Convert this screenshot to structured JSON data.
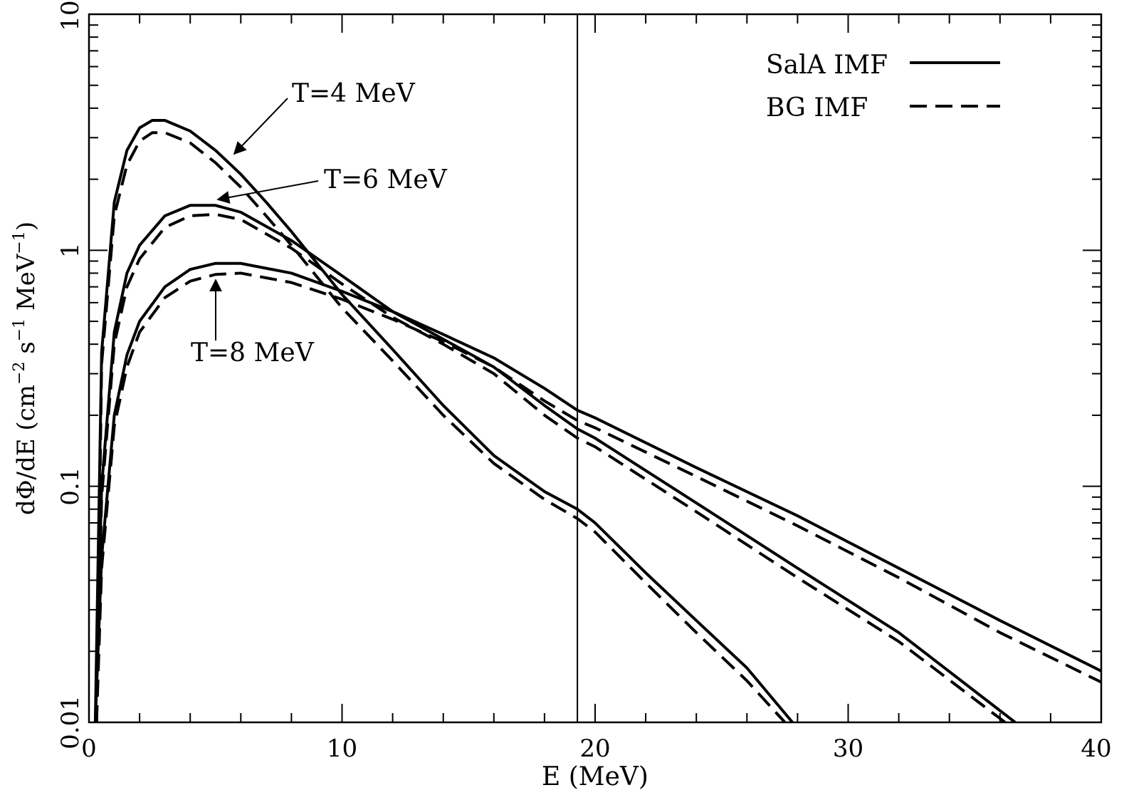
{
  "chart_data": {
    "type": "line",
    "title": "",
    "xlabel": "E (MeV)",
    "ylabel": "dΦ/dE (cm⁻² s⁻¹ MeV⁻¹)",
    "ylabel_parts": {
      "prefix": "dΦ/dE (cm",
      "exp1": "−2",
      "mid1": " s",
      "exp2": "−1",
      "mid2": " MeV",
      "exp3": "−1",
      "suffix": ")"
    },
    "xlim": [
      0,
      40
    ],
    "ylim": [
      0.01,
      10
    ],
    "yscale": "log",
    "grid": false,
    "x_ticks": [
      0,
      10,
      20,
      30,
      40
    ],
    "x_tick_labels": [
      "0",
      "10",
      "20",
      "30",
      "40"
    ],
    "y_ticks": [
      0.01,
      0.1,
      1,
      10
    ],
    "y_tick_labels": [
      "0.01",
      "0.1",
      "1",
      "10"
    ],
    "vertical_line_x": 19.3,
    "legend": {
      "position": "top-right",
      "entries": [
        {
          "label": "SalA IMF",
          "style": "solid"
        },
        {
          "label": "BG IMF",
          "style": "dashed"
        }
      ]
    },
    "series": [
      {
        "name": "SalA IMF, T=4 MeV",
        "style": "solid",
        "x": [
          0.25,
          0.5,
          1,
          1.5,
          2,
          2.5,
          3,
          4,
          5,
          6,
          7,
          8,
          10,
          12,
          14,
          16,
          18,
          19.3,
          20,
          22,
          24,
          26,
          27.8
        ],
        "y": [
          0.01,
          0.37,
          1.6,
          2.65,
          3.3,
          3.55,
          3.55,
          3.2,
          2.65,
          2.1,
          1.6,
          1.2,
          0.65,
          0.38,
          0.22,
          0.135,
          0.095,
          0.08,
          0.07,
          0.043,
          0.027,
          0.017,
          0.01
        ]
      },
      {
        "name": "BG IMF, T=4 MeV",
        "style": "dashed",
        "x": [
          0.3,
          0.5,
          1,
          1.5,
          2,
          2.5,
          3,
          4,
          5,
          6,
          7,
          8,
          10,
          12,
          14,
          16,
          18,
          19.3,
          20,
          22,
          24,
          26,
          27.5
        ],
        "y": [
          0.01,
          0.33,
          1.4,
          2.3,
          2.9,
          3.15,
          3.15,
          2.85,
          2.35,
          1.85,
          1.4,
          1.05,
          0.57,
          0.34,
          0.2,
          0.125,
          0.088,
          0.073,
          0.064,
          0.039,
          0.024,
          0.015,
          0.01
        ]
      },
      {
        "name": "SalA IMF, T=6 MeV",
        "style": "solid",
        "x": [
          0.25,
          0.5,
          1,
          1.5,
          2,
          3,
          4,
          5,
          6,
          8,
          10,
          12,
          14,
          16,
          18,
          19.3,
          20,
          24,
          28,
          32,
          36.6
        ],
        "y": [
          0.01,
          0.1,
          0.45,
          0.8,
          1.05,
          1.4,
          1.55,
          1.55,
          1.45,
          1.1,
          0.78,
          0.55,
          0.42,
          0.32,
          0.22,
          0.175,
          0.16,
          0.085,
          0.045,
          0.024,
          0.01
        ]
      },
      {
        "name": "BG IMF, T=6 MeV",
        "style": "dashed",
        "x": [
          0.3,
          0.5,
          1,
          1.5,
          2,
          3,
          4,
          5,
          6,
          8,
          10,
          12,
          14,
          16,
          18,
          19.3,
          20,
          24,
          28,
          32,
          36.2
        ],
        "y": [
          0.01,
          0.09,
          0.4,
          0.7,
          0.92,
          1.25,
          1.4,
          1.42,
          1.35,
          1.02,
          0.72,
          0.52,
          0.4,
          0.3,
          0.2,
          0.16,
          0.147,
          0.078,
          0.041,
          0.022,
          0.01
        ]
      },
      {
        "name": "SalA IMF, T=8 MeV",
        "style": "solid",
        "x": [
          0.25,
          0.5,
          1,
          1.5,
          2,
          3,
          4,
          5,
          6,
          8,
          10,
          12,
          14,
          16,
          18,
          19.3,
          20,
          24,
          28,
          32,
          36,
          40
        ],
        "y": [
          0.01,
          0.05,
          0.2,
          0.36,
          0.5,
          0.7,
          0.83,
          0.88,
          0.88,
          0.8,
          0.67,
          0.55,
          0.44,
          0.35,
          0.26,
          0.21,
          0.195,
          0.12,
          0.075,
          0.045,
          0.027,
          0.0165
        ]
      },
      {
        "name": "BG IMF, T=8 MeV",
        "style": "dashed",
        "x": [
          0.3,
          0.5,
          1,
          1.5,
          2,
          3,
          4,
          5,
          6,
          8,
          10,
          12,
          14,
          16,
          18,
          19.3,
          20,
          24,
          28,
          32,
          36,
          40
        ],
        "y": [
          0.01,
          0.045,
          0.18,
          0.32,
          0.45,
          0.63,
          0.74,
          0.79,
          0.8,
          0.73,
          0.62,
          0.51,
          0.41,
          0.32,
          0.23,
          0.19,
          0.177,
          0.11,
          0.068,
          0.041,
          0.024,
          0.0148
        ]
      }
    ],
    "annotations": [
      {
        "text": "T=4 MeV",
        "arrow_to": {
          "x": 5.8,
          "y": 2.4
        }
      },
      {
        "text": "T=6 MeV",
        "arrow_to": {
          "x": 5.0,
          "y": 1.58
        }
      },
      {
        "text": "T=8 MeV",
        "arrow_to": {
          "x": 5.0,
          "y": 0.85
        }
      }
    ]
  }
}
